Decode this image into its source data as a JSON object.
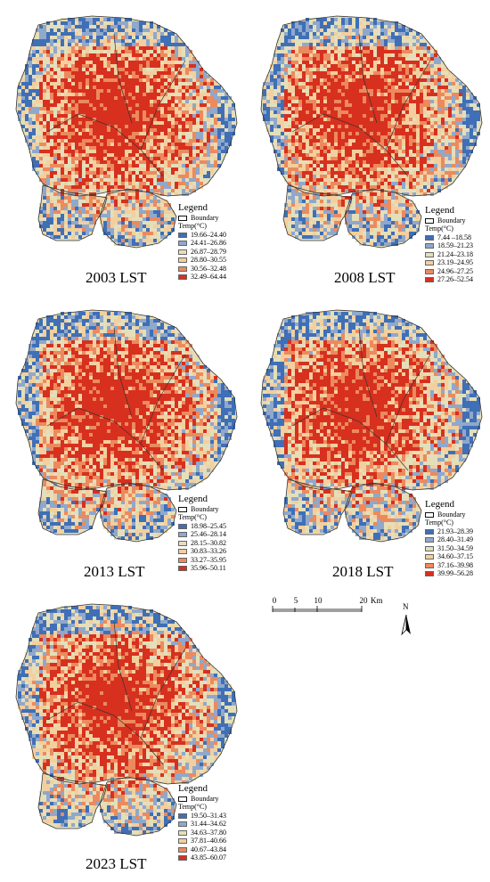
{
  "panels": [
    {
      "title": "2003 LST",
      "legend": {
        "title": "Legend",
        "boundary_label": "Boundary",
        "temp_label": "Temp(°C)",
        "classes": [
          {
            "range": "19.66–24.40",
            "color": "#3f6fb6"
          },
          {
            "range": "24.41–26.86",
            "color": "#8fa8cc"
          },
          {
            "range": "26.87–28.79",
            "color": "#e4dfbb"
          },
          {
            "range": "28.80–30.55",
            "color": "#f3cf9e"
          },
          {
            "range": "30.56–32.48",
            "color": "#ec8a5e"
          },
          {
            "range": "32.49–64.44",
            "color": "#d7301f"
          }
        ]
      }
    },
    {
      "title": "2008 LST",
      "legend": {
        "title": "Legend",
        "boundary_label": "Boundary",
        "temp_label": "Temp(°C)",
        "classes": [
          {
            "range": "7.44 –18.58",
            "color": "#3f6fb6"
          },
          {
            "range": "18.59–21.23",
            "color": "#8fa8cc"
          },
          {
            "range": "21.24–23.18",
            "color": "#e4dfbb"
          },
          {
            "range": "23.19–24.95",
            "color": "#f3cf9e"
          },
          {
            "range": "24.96–27.25",
            "color": "#ec8a5e"
          },
          {
            "range": "27.26–52.54",
            "color": "#d7301f"
          }
        ]
      }
    },
    {
      "title": "2013 LST",
      "legend": {
        "title": "Legend",
        "boundary_label": "Boundary",
        "temp_label": "Temp(°C)",
        "classes": [
          {
            "range": "18.98–25.45",
            "color": "#3f6fb6"
          },
          {
            "range": "25.46–28.14",
            "color": "#8fa8cc"
          },
          {
            "range": "28.15–30.82",
            "color": "#e4dfbb"
          },
          {
            "range": "30.83–33.26",
            "color": "#f3cf9e"
          },
          {
            "range": "33.27–35.95",
            "color": "#ec8a5e"
          },
          {
            "range": "35.96–50.11",
            "color": "#d7301f"
          }
        ]
      }
    },
    {
      "title": "2018 LST",
      "legend": {
        "title": "Legend",
        "boundary_label": "Boundary",
        "temp_label": "Temp(°C)",
        "classes": [
          {
            "range": "21.93–28.39",
            "color": "#3f6fb6"
          },
          {
            "range": "28.40–31.49",
            "color": "#8fa8cc"
          },
          {
            "range": "31.50–34.59",
            "color": "#e4dfbb"
          },
          {
            "range": "34.60–37.15",
            "color": "#f3cf9e"
          },
          {
            "range": "37.16–39.98",
            "color": "#ec8a5e"
          },
          {
            "range": "39.99–56.28",
            "color": "#d7301f"
          }
        ]
      }
    },
    {
      "title": "2023 LST",
      "legend": {
        "title": "Legend",
        "boundary_label": "Boundary",
        "temp_label": "Temp(°C)",
        "classes": [
          {
            "range": "19.50–31.43",
            "color": "#3f6fb6"
          },
          {
            "range": "31.44–34.62",
            "color": "#8fa8cc"
          },
          {
            "range": "34.63–37.80",
            "color": "#e4dfbb"
          },
          {
            "range": "37.81–40.66",
            "color": "#f3cf9e"
          },
          {
            "range": "40.67–43.84",
            "color": "#ec8a5e"
          },
          {
            "range": "43.85–60.07",
            "color": "#d7301f"
          }
        ]
      }
    }
  ],
  "scale_bar": {
    "ticks": [
      "0",
      "5",
      "10",
      "20"
    ],
    "unit": "Km"
  },
  "north_arrow": {
    "label": "N"
  }
}
